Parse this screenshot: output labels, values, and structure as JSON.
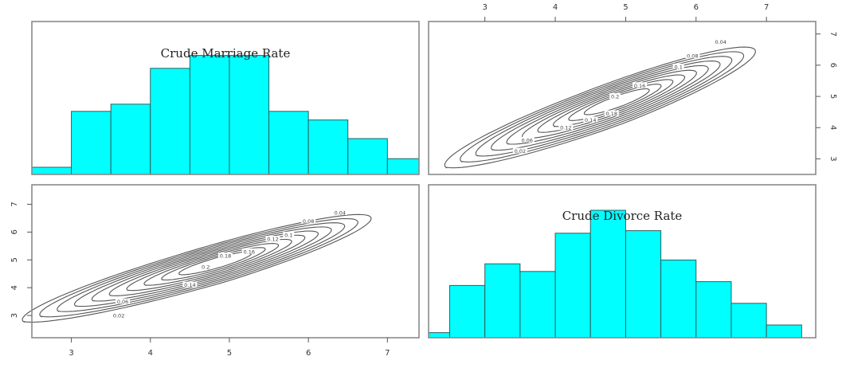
{
  "chart_data": [
    {
      "panel": "top-left",
      "type": "bar",
      "subtype": "histogram",
      "title": "Crude Marriage Rate",
      "xlabel": "",
      "ylabel": "",
      "xlim": [
        2.5,
        7.4
      ],
      "bin_edges": [
        2.5,
        3.0,
        3.5,
        4.0,
        4.5,
        5.0,
        5.5,
        6.0,
        6.5,
        7.0,
        7.5
      ],
      "values": [
        0.05,
        0.44,
        0.49,
        0.74,
        0.83,
        0.83,
        0.44,
        0.38,
        0.25,
        0.11
      ],
      "ylim": [
        0,
        1.0
      ],
      "color": "#00ffff",
      "axes_shown": false
    },
    {
      "panel": "top-right",
      "type": "contour",
      "title": "",
      "xlabel": "",
      "ylabel": "",
      "xlim": [
        2.2,
        7.7
      ],
      "ylim": [
        2.5,
        7.4
      ],
      "x_ticks": [
        "3",
        "4",
        "5",
        "6",
        "7"
      ],
      "y_ticks": [
        "3",
        "4",
        "5",
        "6",
        "7"
      ],
      "x_axis_side": "top",
      "y_axis_side": "right",
      "levels": [
        0.02,
        0.04,
        0.06,
        0.08,
        0.1,
        0.12,
        0.14,
        0.16,
        0.18,
        0.2
      ],
      "level_labels_shown": [
        "0.02",
        "0.06",
        "0.12",
        "0.14",
        "0.18",
        "0.2",
        "0.16",
        "0.1",
        "0.08",
        "0.04"
      ],
      "peak": [
        4.9,
        4.85
      ],
      "correlation": "strong positive"
    },
    {
      "panel": "bottom-left",
      "type": "contour",
      "title": "",
      "xlabel": "",
      "ylabel": "",
      "xlim": [
        2.5,
        7.4
      ],
      "ylim": [
        2.2,
        7.7
      ],
      "x_ticks": [
        "3",
        "4",
        "5",
        "6",
        "7"
      ],
      "y_ticks": [
        "3",
        "4",
        "5",
        "6",
        "7"
      ],
      "x_axis_side": "bottom",
      "y_axis_side": "left",
      "levels": [
        0.02,
        0.04,
        0.06,
        0.08,
        0.1,
        0.12,
        0.14,
        0.16,
        0.18,
        0.2
      ],
      "level_labels_shown": [
        "0.02",
        "0.06",
        "0.14",
        "0.2",
        "0.18",
        "0.16",
        "0.12",
        "0.1",
        "0.08",
        "0.04"
      ],
      "peak": [
        4.85,
        4.9
      ],
      "correlation": "strong positive"
    },
    {
      "panel": "bottom-right",
      "type": "bar",
      "subtype": "histogram",
      "title": "Crude Divorce Rate",
      "xlabel": "",
      "ylabel": "",
      "xlim": [
        2.2,
        7.7
      ],
      "bin_edges": [
        2.0,
        2.5,
        3.0,
        3.5,
        4.0,
        4.5,
        5.0,
        5.5,
        6.0,
        6.5,
        7.0,
        7.5
      ],
      "values": [
        0.04,
        0.41,
        0.58,
        0.52,
        0.82,
        1.0,
        0.84,
        0.61,
        0.44,
        0.27,
        0.1
      ],
      "ylim": [
        0,
        1.2
      ],
      "color": "#00ffff",
      "axes_shown": false
    }
  ]
}
